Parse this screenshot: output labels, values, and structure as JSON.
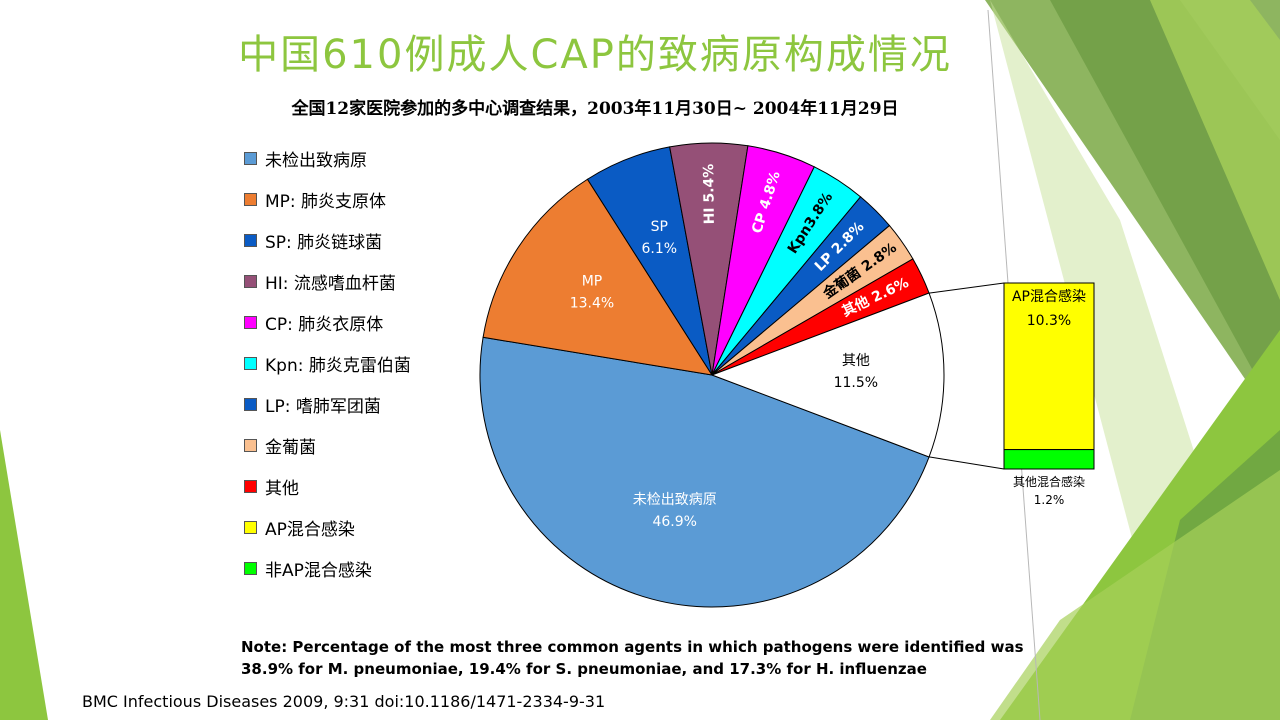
{
  "slide": {
    "title": "中国610例成人CAP的致病原构成情况",
    "subtitle": "全国12家医院参加的多中心调查结果，2003年11月30日~ 2004年11月29日",
    "note_line1": "Note: Percentage of the most three common agents in which pathogens were identified was",
    "note_line2": "38.9% for M. pneumoniae, 19.4% for S. pneumoniae, and   17.3% for H. influenzae",
    "source": "BMC Infectious Diseases 2009, 9:31 doi:10.1186/1471-2334-9-31",
    "theme_colors": [
      "#8dc63f",
      "#6ea442",
      "#a6d05a",
      "#c7e29a"
    ]
  },
  "legend": [
    {
      "label": "未检出致病原",
      "color": "#5b9bd5"
    },
    {
      "label": "MP: 肺炎支原体",
      "color": "#ed7d31"
    },
    {
      "label": "SP: 肺炎链球菌",
      "color": "#0a5bc4"
    },
    {
      "label": "HI: 流感嗜血杆菌",
      "color": "#955077"
    },
    {
      "label": "CP: 肺炎衣原体",
      "color": "#ff00ff"
    },
    {
      "label": "Kpn: 肺炎克雷伯菌",
      "color": "#00ffff"
    },
    {
      "label": "LP: 嗜肺军团菌",
      "color": "#0a5bc4"
    },
    {
      "label": "金葡菌",
      "color": "#fac090"
    },
    {
      "label": "其他",
      "color": "#ff0000"
    },
    {
      "label": "AP混合感染",
      "color": "#ffff00"
    },
    {
      "label": "非AP混合感染",
      "color": "#00ff00"
    }
  ],
  "chart_data": {
    "type": "pie",
    "subtype": "pie-of-bar",
    "slices": [
      {
        "name": "未检出致病原",
        "label": "未检出致病原",
        "value_label": "46.9%",
        "value": 46.9,
        "color": "#5b9bd5",
        "text_color": "#ffffff"
      },
      {
        "name": "MP",
        "label": "MP",
        "value_label": "13.4%",
        "value": 13.4,
        "color": "#ed7d31",
        "text_color": "#ffffff"
      },
      {
        "name": "SP",
        "label": "SP",
        "value_label": "6.1%",
        "value": 6.1,
        "color": "#0a5bc4",
        "text_color": "#ffffff"
      },
      {
        "name": "HI",
        "label": "HI 5.4%",
        "value_label": "",
        "value": 5.4,
        "color": "#955077",
        "text_color": "#ffffff"
      },
      {
        "name": "CP",
        "label": "CP 4.8%",
        "value_label": "",
        "value": 4.8,
        "color": "#ff00ff",
        "text_color": "#ffffff"
      },
      {
        "name": "Kpn",
        "label": "Kpn3.8%",
        "value_label": "",
        "value": 3.8,
        "color": "#00ffff",
        "text_color": "#000000"
      },
      {
        "name": "LP",
        "label": "LP 2.8%",
        "value_label": "",
        "value": 2.8,
        "color": "#0a5bc4",
        "text_color": "#ffffff"
      },
      {
        "name": "金葡菌",
        "label": "金葡菌 2.8%",
        "value_label": "",
        "value": 2.8,
        "color": "#fac090",
        "text_color": "#000000"
      },
      {
        "name": "其他",
        "label": "其他 2.6%",
        "value_label": "",
        "value": 2.6,
        "color": "#ff0000",
        "text_color": "#ffffff"
      },
      {
        "name": "其他（混合感染）",
        "label": "其他",
        "value_label": "11.5%",
        "value": 11.5,
        "color": "#ffffff",
        "text_color": "#000000"
      }
    ],
    "breakout_bar": [
      {
        "name": "AP混合感染",
        "label": "AP混合感染",
        "value_label": "10.3%",
        "value": 10.3,
        "color": "#ffff00"
      },
      {
        "name": "其他混合感染",
        "label": "其他混合感染",
        "value_label": "1.2%",
        "value": 1.2,
        "color": "#00ff00"
      }
    ]
  }
}
